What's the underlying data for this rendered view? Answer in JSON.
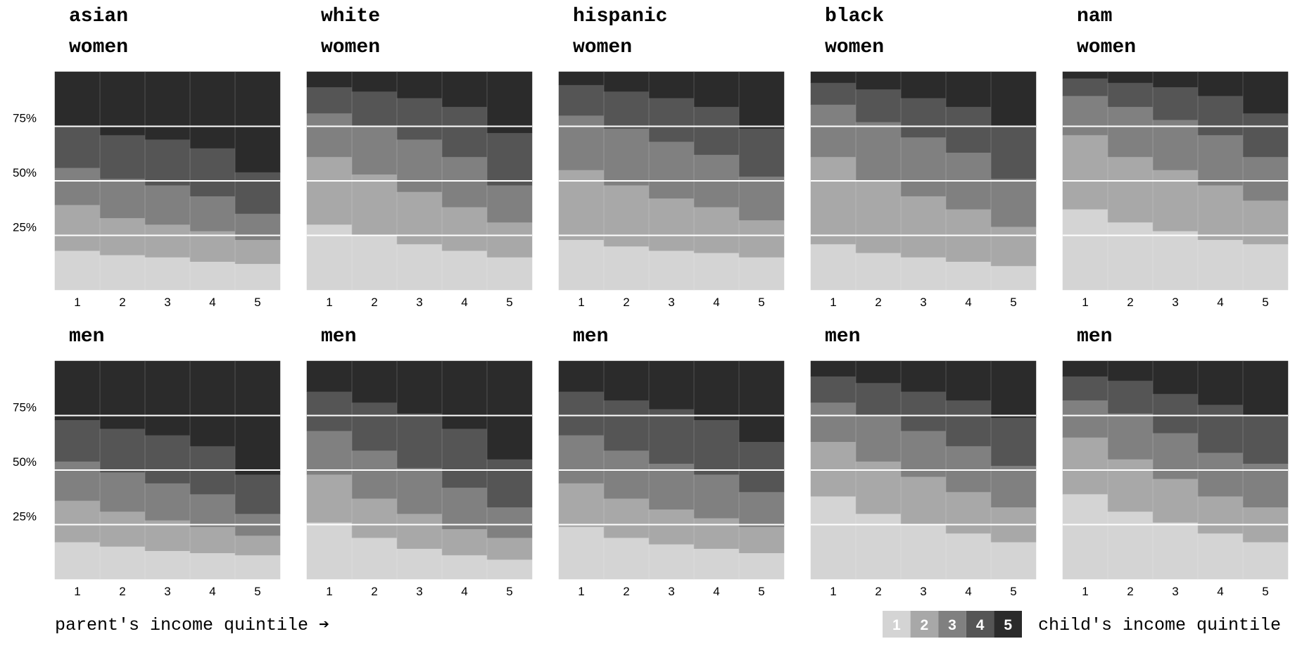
{
  "colors": {
    "q1": "#d4d4d4",
    "q2": "#a8a8a8",
    "q3": "#808080",
    "q4": "#555555",
    "q5": "#2b2b2b",
    "gridline": "#ffffff"
  },
  "footer": {
    "xlabel": "parent's income quintile ➔",
    "legend_title": "child's income quintile",
    "legend_items": [
      "1",
      "2",
      "3",
      "4",
      "5"
    ]
  },
  "chart_data": [
    {
      "type": "bar",
      "stacked": true,
      "title": "asian",
      "subtitle": "women",
      "categories": [
        "1",
        "2",
        "3",
        "4",
        "5"
      ],
      "xlabel": "parent's income quintile",
      "ylim": [
        0,
        100
      ],
      "yticks": [
        "25%",
        "50%",
        "75%"
      ],
      "series": [
        {
          "name": "1",
          "values": [
            18,
            16,
            15,
            13,
            12
          ]
        },
        {
          "name": "2",
          "values": [
            21,
            17,
            15,
            14,
            11
          ]
        },
        {
          "name": "3",
          "values": [
            17,
            18,
            18,
            16,
            12
          ]
        },
        {
          "name": "4",
          "values": [
            19,
            20,
            21,
            22,
            19
          ]
        },
        {
          "name": "5",
          "values": [
            25,
            29,
            31,
            35,
            46
          ]
        }
      ]
    },
    {
      "type": "bar",
      "stacked": true,
      "title": "white",
      "subtitle": "women",
      "categories": [
        "1",
        "2",
        "3",
        "4",
        "5"
      ],
      "xlabel": "parent's income quintile",
      "ylim": [
        0,
        100
      ],
      "yticks": [
        "25%",
        "50%",
        "75%"
      ],
      "series": [
        {
          "name": "1",
          "values": [
            30,
            25,
            21,
            18,
            15
          ]
        },
        {
          "name": "2",
          "values": [
            31,
            28,
            24,
            20,
            16
          ]
        },
        {
          "name": "3",
          "values": [
            20,
            22,
            24,
            23,
            17
          ]
        },
        {
          "name": "4",
          "values": [
            12,
            16,
            19,
            23,
            24
          ]
        },
        {
          "name": "5",
          "values": [
            7,
            9,
            12,
            16,
            28
          ]
        }
      ]
    },
    {
      "type": "bar",
      "stacked": true,
      "title": "hispanic",
      "subtitle": "women",
      "categories": [
        "1",
        "2",
        "3",
        "4",
        "5"
      ],
      "xlabel": "parent's income quintile",
      "ylim": [
        0,
        100
      ],
      "yticks": [
        "25%",
        "50%",
        "75%"
      ],
      "series": [
        {
          "name": "1",
          "values": [
            23,
            20,
            18,
            17,
            15
          ]
        },
        {
          "name": "2",
          "values": [
            32,
            28,
            24,
            21,
            17
          ]
        },
        {
          "name": "3",
          "values": [
            25,
            26,
            26,
            24,
            20
          ]
        },
        {
          "name": "4",
          "values": [
            14,
            17,
            20,
            22,
            22
          ]
        },
        {
          "name": "5",
          "values": [
            6,
            9,
            12,
            16,
            26
          ]
        }
      ]
    },
    {
      "type": "bar",
      "stacked": true,
      "title": "black",
      "subtitle": "women",
      "categories": [
        "1",
        "2",
        "3",
        "4",
        "5"
      ],
      "xlabel": "parent's income quintile",
      "ylim": [
        0,
        100
      ],
      "yticks": [
        "25%",
        "50%",
        "75%"
      ],
      "series": [
        {
          "name": "1",
          "values": [
            21,
            17,
            15,
            13,
            11
          ]
        },
        {
          "name": "2",
          "values": [
            40,
            33,
            28,
            24,
            18
          ]
        },
        {
          "name": "3",
          "values": [
            24,
            27,
            27,
            26,
            22
          ]
        },
        {
          "name": "4",
          "values": [
            10,
            15,
            18,
            21,
            24
          ]
        },
        {
          "name": "5",
          "values": [
            5,
            8,
            12,
            16,
            25
          ]
        }
      ]
    },
    {
      "type": "bar",
      "stacked": true,
      "title": "nam",
      "subtitle": "women",
      "categories": [
        "1",
        "2",
        "3",
        "4",
        "5"
      ],
      "xlabel": "parent's income quintile",
      "ylim": [
        0,
        100
      ],
      "yticks": [
        "25%",
        "50%",
        "75%"
      ],
      "series": [
        {
          "name": "1",
          "values": [
            37,
            31,
            27,
            23,
            21
          ]
        },
        {
          "name": "2",
          "values": [
            34,
            30,
            28,
            25,
            20
          ]
        },
        {
          "name": "3",
          "values": [
            18,
            23,
            23,
            23,
            20
          ]
        },
        {
          "name": "4",
          "values": [
            8,
            11,
            15,
            18,
            20
          ]
        },
        {
          "name": "5",
          "values": [
            3,
            5,
            7,
            11,
            19
          ]
        }
      ]
    },
    {
      "type": "bar",
      "stacked": true,
      "title": "",
      "subtitle": "men",
      "categories": [
        "1",
        "2",
        "3",
        "4",
        "5"
      ],
      "xlabel": "parent's income quintile",
      "ylim": [
        0,
        100
      ],
      "yticks": [
        "25%",
        "50%",
        "75%"
      ],
      "series": [
        {
          "name": "1",
          "values": [
            17,
            15,
            13,
            12,
            11
          ]
        },
        {
          "name": "2",
          "values": [
            19,
            16,
            14,
            12,
            9
          ]
        },
        {
          "name": "3",
          "values": [
            18,
            18,
            17,
            15,
            10
          ]
        },
        {
          "name": "4",
          "values": [
            19,
            20,
            22,
            22,
            18
          ]
        },
        {
          "name": "5",
          "values": [
            27,
            31,
            34,
            39,
            52
          ]
        }
      ]
    },
    {
      "type": "bar",
      "stacked": true,
      "title": "",
      "subtitle": "men",
      "categories": [
        "1",
        "2",
        "3",
        "4",
        "5"
      ],
      "xlabel": "parent's income quintile",
      "ylim": [
        0,
        100
      ],
      "yticks": [
        "25%",
        "50%",
        "75%"
      ],
      "series": [
        {
          "name": "1",
          "values": [
            26,
            19,
            14,
            11,
            9
          ]
        },
        {
          "name": "2",
          "values": [
            22,
            18,
            16,
            12,
            10
          ]
        },
        {
          "name": "3",
          "values": [
            20,
            22,
            21,
            19,
            14
          ]
        },
        {
          "name": "4",
          "values": [
            18,
            22,
            25,
            27,
            22
          ]
        },
        {
          "name": "5",
          "values": [
            14,
            19,
            24,
            31,
            45
          ]
        }
      ]
    },
    {
      "type": "bar",
      "stacked": true,
      "title": "",
      "subtitle": "men",
      "categories": [
        "1",
        "2",
        "3",
        "4",
        "5"
      ],
      "xlabel": "parent's income quintile",
      "ylim": [
        0,
        100
      ],
      "yticks": [
        "25%",
        "50%",
        "75%"
      ],
      "series": [
        {
          "name": "1",
          "values": [
            24,
            19,
            16,
            14,
            12
          ]
        },
        {
          "name": "2",
          "values": [
            20,
            18,
            16,
            14,
            12
          ]
        },
        {
          "name": "3",
          "values": [
            22,
            22,
            21,
            20,
            16
          ]
        },
        {
          "name": "4",
          "values": [
            20,
            23,
            25,
            25,
            23
          ]
        },
        {
          "name": "5",
          "values": [
            14,
            18,
            22,
            27,
            37
          ]
        }
      ]
    },
    {
      "type": "bar",
      "stacked": true,
      "title": "",
      "subtitle": "men",
      "categories": [
        "1",
        "2",
        "3",
        "4",
        "5"
      ],
      "xlabel": "parent's income quintile",
      "ylim": [
        0,
        100
      ],
      "yticks": [
        "25%",
        "50%",
        "75%"
      ],
      "series": [
        {
          "name": "1",
          "values": [
            38,
            30,
            25,
            21,
            17
          ]
        },
        {
          "name": "2",
          "values": [
            25,
            24,
            22,
            19,
            16
          ]
        },
        {
          "name": "3",
          "values": [
            18,
            21,
            21,
            21,
            19
          ]
        },
        {
          "name": "4",
          "values": [
            12,
            15,
            18,
            21,
            22
          ]
        },
        {
          "name": "5",
          "values": [
            7,
            10,
            14,
            18,
            26
          ]
        }
      ]
    },
    {
      "type": "bar",
      "stacked": true,
      "title": "",
      "subtitle": "men",
      "categories": [
        "1",
        "2",
        "3",
        "4",
        "5"
      ],
      "xlabel": "parent's income quintile",
      "ylim": [
        0,
        100
      ],
      "yticks": [
        "25%",
        "50%",
        "75%"
      ],
      "series": [
        {
          "name": "1",
          "values": [
            39,
            31,
            26,
            21,
            17
          ]
        },
        {
          "name": "2",
          "values": [
            26,
            24,
            20,
            17,
            16
          ]
        },
        {
          "name": "3",
          "values": [
            17,
            21,
            21,
            20,
            20
          ]
        },
        {
          "name": "4",
          "values": [
            11,
            15,
            18,
            22,
            22
          ]
        },
        {
          "name": "5",
          "values": [
            7,
            9,
            15,
            20,
            25
          ]
        }
      ]
    }
  ]
}
